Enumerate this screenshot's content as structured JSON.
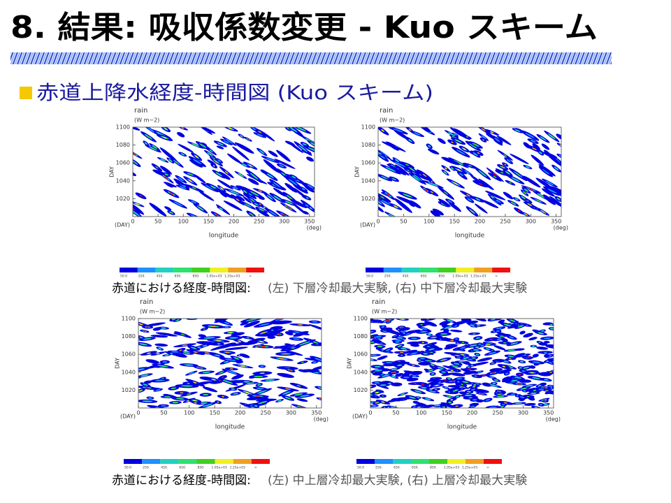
{
  "header": {
    "title": "8. 結果: 吸収係数変更 - Kuo スキーム"
  },
  "section": {
    "heading": "赤道上降水経度-時間図 (Kuo スキーム)"
  },
  "panels": [
    {
      "variable": "rain",
      "units": "(W m−2)",
      "ylabel": "DAY",
      "xlabel": "longitude",
      "yunit": "(DAY)",
      "xunit": "(deg)",
      "yticks": [
        "1020",
        "1040",
        "1060",
        "1080",
        "1100"
      ],
      "xticks": [
        "0",
        "50",
        "100",
        "150",
        "200",
        "250",
        "300",
        "350"
      ]
    },
    {
      "variable": "rain",
      "units": "(W m−2)",
      "ylabel": "DAY",
      "xlabel": "longitude",
      "yunit": "(DAY)",
      "xunit": "(deg)",
      "yticks": [
        "1020",
        "1040",
        "1060",
        "1080",
        "1100"
      ],
      "xticks": [
        "0",
        "50",
        "100",
        "150",
        "200",
        "250",
        "300",
        "350"
      ]
    },
    {
      "variable": "rain",
      "units": "(W m−2)",
      "ylabel": "DAY",
      "xlabel": "longitude",
      "yunit": "(DAY)",
      "xunit": "(deg)",
      "yticks": [
        "1020",
        "1040",
        "1060",
        "1080",
        "1100"
      ],
      "xticks": [
        "0",
        "50",
        "100",
        "150",
        "200",
        "250",
        "300",
        "350"
      ]
    },
    {
      "variable": "rain",
      "units": "(W m−2)",
      "ylabel": "DAY",
      "xlabel": "longitude",
      "yunit": "(DAY)",
      "xunit": "(deg)",
      "yticks": [
        "1020",
        "1040",
        "1060",
        "1080",
        "1100"
      ],
      "xticks": [
        "0",
        "50",
        "100",
        "150",
        "200",
        "250",
        "300",
        "350"
      ]
    }
  ],
  "colorbar": {
    "labels": [
      "50.0",
      "250.",
      "450.",
      "650.",
      "850.",
      "1.05e+03",
      "1.25e+03",
      "∞"
    ],
    "colors": [
      "#0000e0",
      "#1e90ff",
      "#20d0c0",
      "#30e070",
      "#40d020",
      "#f0f020",
      "#f0a020",
      "#f01010"
    ]
  },
  "captions": [
    {
      "lead": "赤道における経度-時間図:",
      "detail": "(左) 下層冷却最大実験, (右) 中下層冷却最大実験"
    },
    {
      "lead": "赤道における経度-時間図:",
      "detail": "(左) 中上層冷却最大実験, (右) 上層冷却最大実験"
    }
  ]
}
